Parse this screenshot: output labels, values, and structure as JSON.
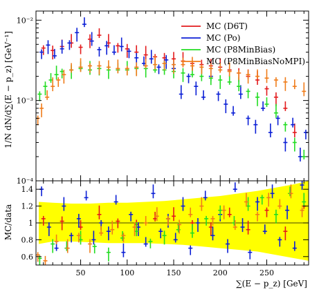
{
  "chart_data": [
    {
      "type": "scatter",
      "panel": "main",
      "title": "",
      "ylabel": "1/N dN/d∑(E − p_z) [GeV⁻¹]",
      "xlabel": "",
      "x_range": [
        2,
        295
      ],
      "y_range": [
        0.0001,
        0.013
      ],
      "log_y": true,
      "y_ticks": [
        {
          "value": 0.01,
          "label": "10⁻²"
        },
        {
          "value": 0.001,
          "label": "10⁻³"
        },
        {
          "value": 0.0001,
          "label": "10⁻⁴"
        }
      ],
      "legend_position": "top-right",
      "series": [
        {
          "name": "MC (D6T)",
          "color": "#e31a1c",
          "x": [
            10,
            20,
            30,
            40,
            50,
            60,
            70,
            80,
            90,
            100,
            110,
            120,
            130,
            140,
            150,
            160,
            170,
            180,
            190,
            200,
            210,
            220,
            230,
            240,
            250,
            260,
            270,
            280
          ],
          "y": [
            0.0045,
            0.0042,
            0.0047,
            0.0052,
            0.0046,
            0.0058,
            0.0065,
            0.0052,
            0.0048,
            0.0044,
            0.004,
            0.0037,
            0.0035,
            0.0034,
            0.0033,
            0.0031,
            0.0029,
            0.0028,
            0.0027,
            0.0026,
            0.0024,
            0.0022,
            0.002,
            0.0018,
            0.0014,
            0.0011,
            0.0008,
            0.0004
          ]
        },
        {
          "name": "MC (Po)",
          "color": "#0b1fd6",
          "x": [
            8,
            15,
            22,
            30,
            38,
            46,
            54,
            62,
            70,
            78,
            86,
            94,
            102,
            110,
            118,
            126,
            134,
            142,
            150,
            158,
            166,
            174,
            182,
            190,
            198,
            206,
            214,
            222,
            230,
            238,
            246,
            254,
            262,
            270,
            278,
            286,
            292
          ],
          "y": [
            0.004,
            0.0049,
            0.0036,
            0.0044,
            0.0052,
            0.007,
            0.0089,
            0.0055,
            0.0043,
            0.0048,
            0.004,
            0.0047,
            0.0041,
            0.0034,
            0.0029,
            0.0033,
            0.0026,
            0.0032,
            0.0025,
            0.0012,
            0.002,
            0.0015,
            0.0011,
            0.002,
            0.0012,
            0.0009,
            0.0007,
            0.0012,
            0.0006,
            0.0005,
            0.0008,
            0.0004,
            0.0006,
            0.0003,
            0.0005,
            0.0002,
            0.0004
          ]
        },
        {
          "name": "MC (P8MinBias)",
          "color": "#22dd22",
          "x": [
            6,
            12,
            18,
            24,
            30,
            40,
            50,
            60,
            70,
            80,
            90,
            100,
            110,
            120,
            130,
            140,
            150,
            160,
            170,
            180,
            190,
            200,
            210,
            220,
            230,
            240,
            250,
            260,
            270,
            280,
            290
          ],
          "y": [
            0.0012,
            0.0015,
            0.0018,
            0.0021,
            0.0023,
            0.0024,
            0.0025,
            0.0024,
            0.0025,
            0.0024,
            0.0024,
            0.0024,
            0.0025,
            0.0025,
            0.0024,
            0.0024,
            0.0023,
            0.0022,
            0.0021,
            0.002,
            0.0019,
            0.0018,
            0.0017,
            0.0015,
            0.0013,
            0.0011,
            0.0009,
            0.0007,
            0.0005,
            0.0003,
            0.0002
          ]
        },
        {
          "name": "MC (P8MinBiasNoMPI)",
          "color": "#f07c1a",
          "x": [
            4,
            8,
            14,
            20,
            26,
            32,
            40,
            50,
            60,
            70,
            80,
            90,
            100,
            110,
            120,
            130,
            140,
            150,
            160,
            170,
            180,
            190,
            200,
            210,
            220,
            230,
            240,
            250,
            260,
            270,
            280,
            290
          ],
          "y": [
            0.0006,
            0.0008,
            0.0011,
            0.0015,
            0.0018,
            0.0021,
            0.0024,
            0.0026,
            0.0027,
            0.0027,
            0.0026,
            0.0025,
            0.0025,
            0.0026,
            0.0027,
            0.0028,
            0.0029,
            0.0028,
            0.0028,
            0.0027,
            0.0026,
            0.0025,
            0.0024,
            0.0023,
            0.0022,
            0.0021,
            0.002,
            0.0019,
            0.0018,
            0.0017,
            0.0015,
            0.0013
          ]
        }
      ]
    },
    {
      "type": "scatter",
      "panel": "ratio",
      "title": "",
      "ylabel": "MC/data",
      "xlabel": "∑(E − p_z) [GeV]",
      "x_range": [
        2,
        295
      ],
      "y_range": [
        0.5,
        1.5
      ],
      "x_ticks": [
        50,
        100,
        150,
        200,
        250
      ],
      "y_ticks": [
        0.6,
        0.8,
        1,
        1.2,
        1.4
      ],
      "band": {
        "description": "data uncertainty",
        "color": "#ffff00",
        "x": [
          5,
          20,
          40,
          60,
          80,
          100,
          120,
          140,
          160,
          180,
          200,
          220,
          240,
          260,
          280,
          295
        ],
        "low": [
          0.75,
          0.78,
          0.78,
          0.77,
          0.76,
          0.76,
          0.76,
          0.75,
          0.74,
          0.72,
          0.7,
          0.68,
          0.66,
          0.62,
          0.58,
          0.55
        ],
        "high": [
          1.25,
          1.24,
          1.23,
          1.23,
          1.24,
          1.24,
          1.25,
          1.26,
          1.28,
          1.3,
          1.32,
          1.35,
          1.38,
          1.42,
          1.46,
          1.5
        ]
      },
      "series": [
        {
          "name": "MC (D6T)",
          "color": "#e31a1c",
          "x": [
            10,
            30,
            50,
            70,
            90,
            110,
            130,
            150,
            170,
            190,
            210,
            230,
            250,
            270,
            290
          ],
          "y": [
            1.05,
            1.02,
            0.95,
            1.1,
            1.02,
            0.98,
            1.05,
            1.08,
            1.0,
            0.95,
            1.1,
            0.92,
            1.15,
            0.9,
            1.2
          ]
        },
        {
          "name": "MC (Po)",
          "color": "#0b1fd6",
          "x": [
            8,
            16,
            24,
            32,
            40,
            48,
            56,
            64,
            72,
            80,
            88,
            96,
            104,
            112,
            120,
            128,
            136,
            144,
            152,
            160,
            168,
            176,
            184,
            192,
            200,
            208,
            216,
            224,
            232,
            240,
            248,
            256,
            264,
            272,
            280,
            288
          ],
          "y": [
            1.4,
            0.95,
            0.7,
            1.2,
            0.85,
            1.05,
            1.3,
            0.8,
            1.0,
            0.9,
            1.25,
            0.65,
            1.1,
            0.95,
            0.75,
            1.35,
            0.9,
            1.05,
            0.8,
            1.2,
            0.7,
            1.0,
            1.3,
            0.85,
            1.1,
            0.75,
            1.4,
            0.95,
            0.65,
            1.25,
            0.9,
            1.35,
            0.8,
            1.15,
            0.7,
            1.45
          ]
        },
        {
          "name": "MC (P8MinBias)",
          "color": "#22dd22",
          "x": [
            6,
            20,
            35,
            50,
            65,
            80,
            95,
            110,
            125,
            140,
            155,
            170,
            185,
            200,
            215,
            230,
            245,
            260,
            275,
            290
          ],
          "y": [
            0.58,
            0.75,
            0.7,
            0.8,
            0.72,
            0.65,
            0.82,
            0.9,
            0.78,
            0.85,
            0.92,
            0.88,
            1.05,
            1.15,
            1.0,
            1.2,
            1.3,
            1.1,
            1.35,
            1.25
          ]
        },
        {
          "name": "MC (P8MinBiasNoMPI)",
          "color": "#f07c1a",
          "x": [
            4,
            12,
            24,
            36,
            48,
            60,
            72,
            84,
            96,
            108,
            120,
            132,
            144,
            156,
            168,
            180,
            192,
            204,
            216,
            228,
            240,
            252,
            264,
            276,
            288
          ],
          "y": [
            0.62,
            0.55,
            0.78,
            0.7,
            0.85,
            0.75,
            0.88,
            0.92,
            0.85,
            0.95,
            1.0,
            1.08,
            1.05,
            0.98,
            1.1,
            1.2,
            1.05,
            1.15,
            0.95,
            1.25,
            1.1,
            1.3,
            1.2,
            1.35,
            1.15
          ]
        }
      ]
    }
  ]
}
